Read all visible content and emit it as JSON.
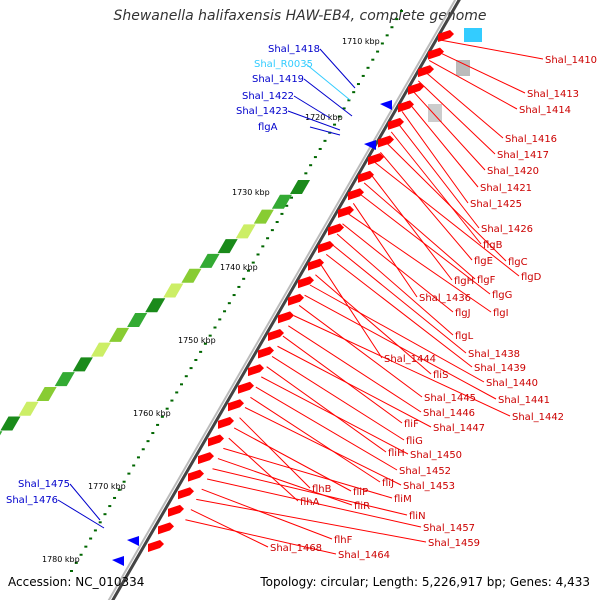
{
  "title": "Shewanella halifaxensis HAW-EB4, complete genome",
  "accession": "Accession: NC_010334",
  "topology": "Topology: circular; Length: 5,226,917 bp; Genes: 4,433",
  "scale_labels": [
    "1710 kbp",
    "1720 kbp",
    "1730 kbp",
    "1740 kbp",
    "1750 kbp",
    "1760 kbp",
    "1770 kbp",
    "1780 kbp"
  ],
  "left_labels": [
    {
      "text": "Shal_1418",
      "color": "#0000cc"
    },
    {
      "text": "Shal_R0035",
      "color": "#33ccff"
    },
    {
      "text": "Shal_1419",
      "color": "#0000cc"
    },
    {
      "text": "Shal_1422",
      "color": "#0000cc"
    },
    {
      "text": "Shal_1423",
      "color": "#0000cc"
    },
    {
      "text": "flgA",
      "color": "#0000cc"
    },
    {
      "text": "Shal_1475",
      "color": "#0000cc"
    },
    {
      "text": "Shal_1476",
      "color": "#0000cc"
    }
  ],
  "right_labels": [
    "Shal_1410",
    "Shal_1413",
    "Shal_1414",
    "Shal_1416",
    "Shal_1417",
    "Shal_1420",
    "Shal_1421",
    "Shal_1425",
    "Shal_1426",
    "flgB",
    "flgC",
    "flgE",
    "flgD",
    "flgH",
    "flgF",
    "flgG",
    "Shal_1436",
    "flgI",
    "flgJ",
    "flgL",
    "Shal_1438",
    "Shal_1439",
    "Shal_1444",
    "fliS",
    "Shal_1440",
    "Shal_1441",
    "Shal_1445",
    "Shal_1442",
    "Shal_1446",
    "fliF",
    "Shal_1447",
    "fliG",
    "fliH",
    "Shal_1450",
    "Shal_1452",
    "fliJ",
    "Shal_1453",
    "flhB",
    "fliP",
    "flhA",
    "fliM",
    "fliR",
    "fliN",
    "Shal_1457",
    "flhF",
    "Shal_1459",
    "Shal_1468",
    "Shal_1464"
  ],
  "colors": {
    "forward_gene": "#ff0000",
    "reverse_gene": "#0000ff",
    "trna": "#33ccff",
    "backbone": "#888888",
    "ticks": "#006600"
  }
}
